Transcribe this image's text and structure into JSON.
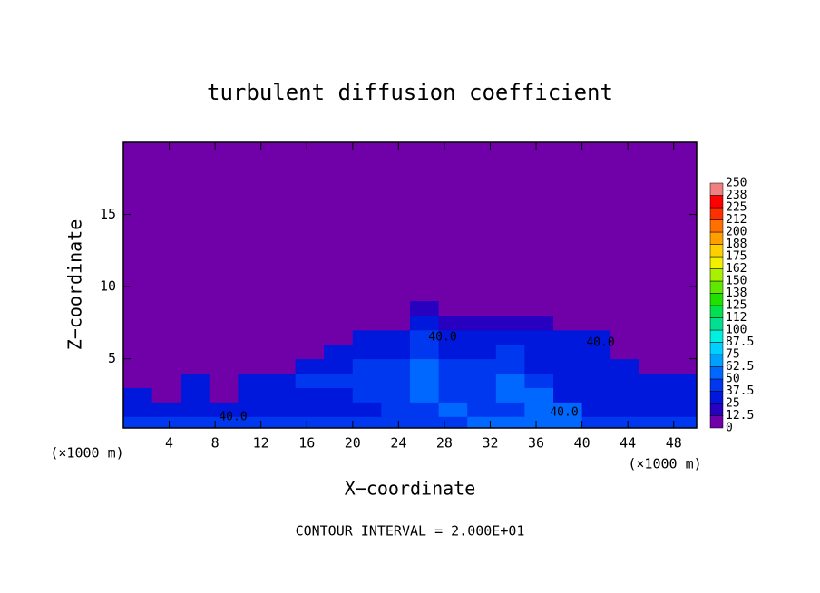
{
  "chart_data": {
    "type": "heatmap",
    "title": "turbulent diffusion coefficient",
    "xlabel": "X−coordinate",
    "ylabel": "Z−coordinate",
    "x_unit_left": "(×1000 m)",
    "x_unit_right": "(×1000 m)",
    "footer": "CONTOUR INTERVAL = 2.000E+01",
    "contour_labels": [
      "40.0",
      "40.0",
      "40.0",
      "40.0"
    ],
    "xlim": [
      0,
      50
    ],
    "ylim": [
      0.2,
      20
    ],
    "xticks": [
      4,
      8,
      12,
      16,
      20,
      24,
      28,
      32,
      36,
      40,
      44,
      48
    ],
    "yticks": [
      5,
      10,
      15
    ],
    "x": [
      1.25,
      3.75,
      6.25,
      8.75,
      11.25,
      13.75,
      16.25,
      18.75,
      21.25,
      23.75,
      26.25,
      28.75,
      31.25,
      33.75,
      36.25,
      38.75,
      41.25,
      43.75,
      46.25,
      48.75
    ],
    "z": [
      0.5,
      1.5,
      2.5,
      3.5,
      4.5,
      5.5,
      6.5,
      7.5,
      8.5
    ],
    "values": [
      [
        40,
        40,
        40,
        40,
        40,
        40,
        40,
        40,
        40,
        40,
        40,
        45,
        55,
        60,
        60,
        55,
        45,
        45,
        45,
        45
      ],
      [
        30,
        30,
        30,
        30,
        30,
        30,
        35,
        35,
        35,
        40,
        45,
        50,
        40,
        40,
        60,
        55,
        35,
        35,
        35,
        35
      ],
      [
        30,
        10,
        30,
        10,
        30,
        30,
        35,
        35,
        40,
        45,
        55,
        45,
        40,
        50,
        55,
        35,
        35,
        30,
        30,
        30
      ],
      [
        10,
        10,
        30,
        10,
        30,
        30,
        40,
        40,
        40,
        45,
        55,
        40,
        45,
        50,
        40,
        35,
        30,
        30,
        30,
        30
      ],
      [
        5,
        5,
        5,
        10,
        10,
        10,
        30,
        35,
        40,
        45,
        50,
        40,
        40,
        45,
        35,
        30,
        30,
        30,
        10,
        10
      ],
      [
        5,
        5,
        5,
        5,
        5,
        5,
        10,
        30,
        30,
        35,
        45,
        35,
        35,
        40,
        35,
        30,
        30,
        10,
        5,
        5
      ],
      [
        5,
        5,
        5,
        5,
        5,
        5,
        5,
        5,
        30,
        30,
        40,
        30,
        30,
        30,
        30,
        30,
        30,
        5,
        5,
        5
      ],
      [
        5,
        5,
        5,
        5,
        5,
        5,
        5,
        5,
        5,
        5,
        35,
        20,
        20,
        20,
        20,
        5,
        5,
        5,
        5,
        5
      ],
      [
        5,
        5,
        5,
        5,
        5,
        5,
        5,
        5,
        5,
        5,
        15,
        5,
        5,
        5,
        5,
        5,
        5,
        5,
        5,
        5
      ]
    ],
    "colorbar_ticks": [
      0,
      12.5,
      25,
      37.5,
      50,
      62.5,
      75,
      87.5,
      100,
      112.5,
      125,
      137.5,
      150,
      162.5,
      175,
      187.5,
      200,
      212.5,
      225,
      237.5,
      250
    ],
    "colorbar_labels": [
      "0",
      "12.5",
      "25",
      "37.5",
      "50",
      "62.5",
      "75",
      "87.5",
      "100",
      "112",
      "125",
      "138",
      "150",
      "162",
      "175",
      "188",
      "200",
      "212",
      "225",
      "238",
      "250"
    ],
    "colors": [
      "#7000a8",
      "#2800c0",
      "#0018dc",
      "#0038f0",
      "#0068ff",
      "#00a0ff",
      "#00d0ff",
      "#00f0e0",
      "#00e090",
      "#00e050",
      "#20e000",
      "#60e800",
      "#a8f000",
      "#f0f000",
      "#ffd000",
      "#ffa000",
      "#ff7000",
      "#ff3000",
      "#ff0000",
      "#f08080"
    ]
  }
}
